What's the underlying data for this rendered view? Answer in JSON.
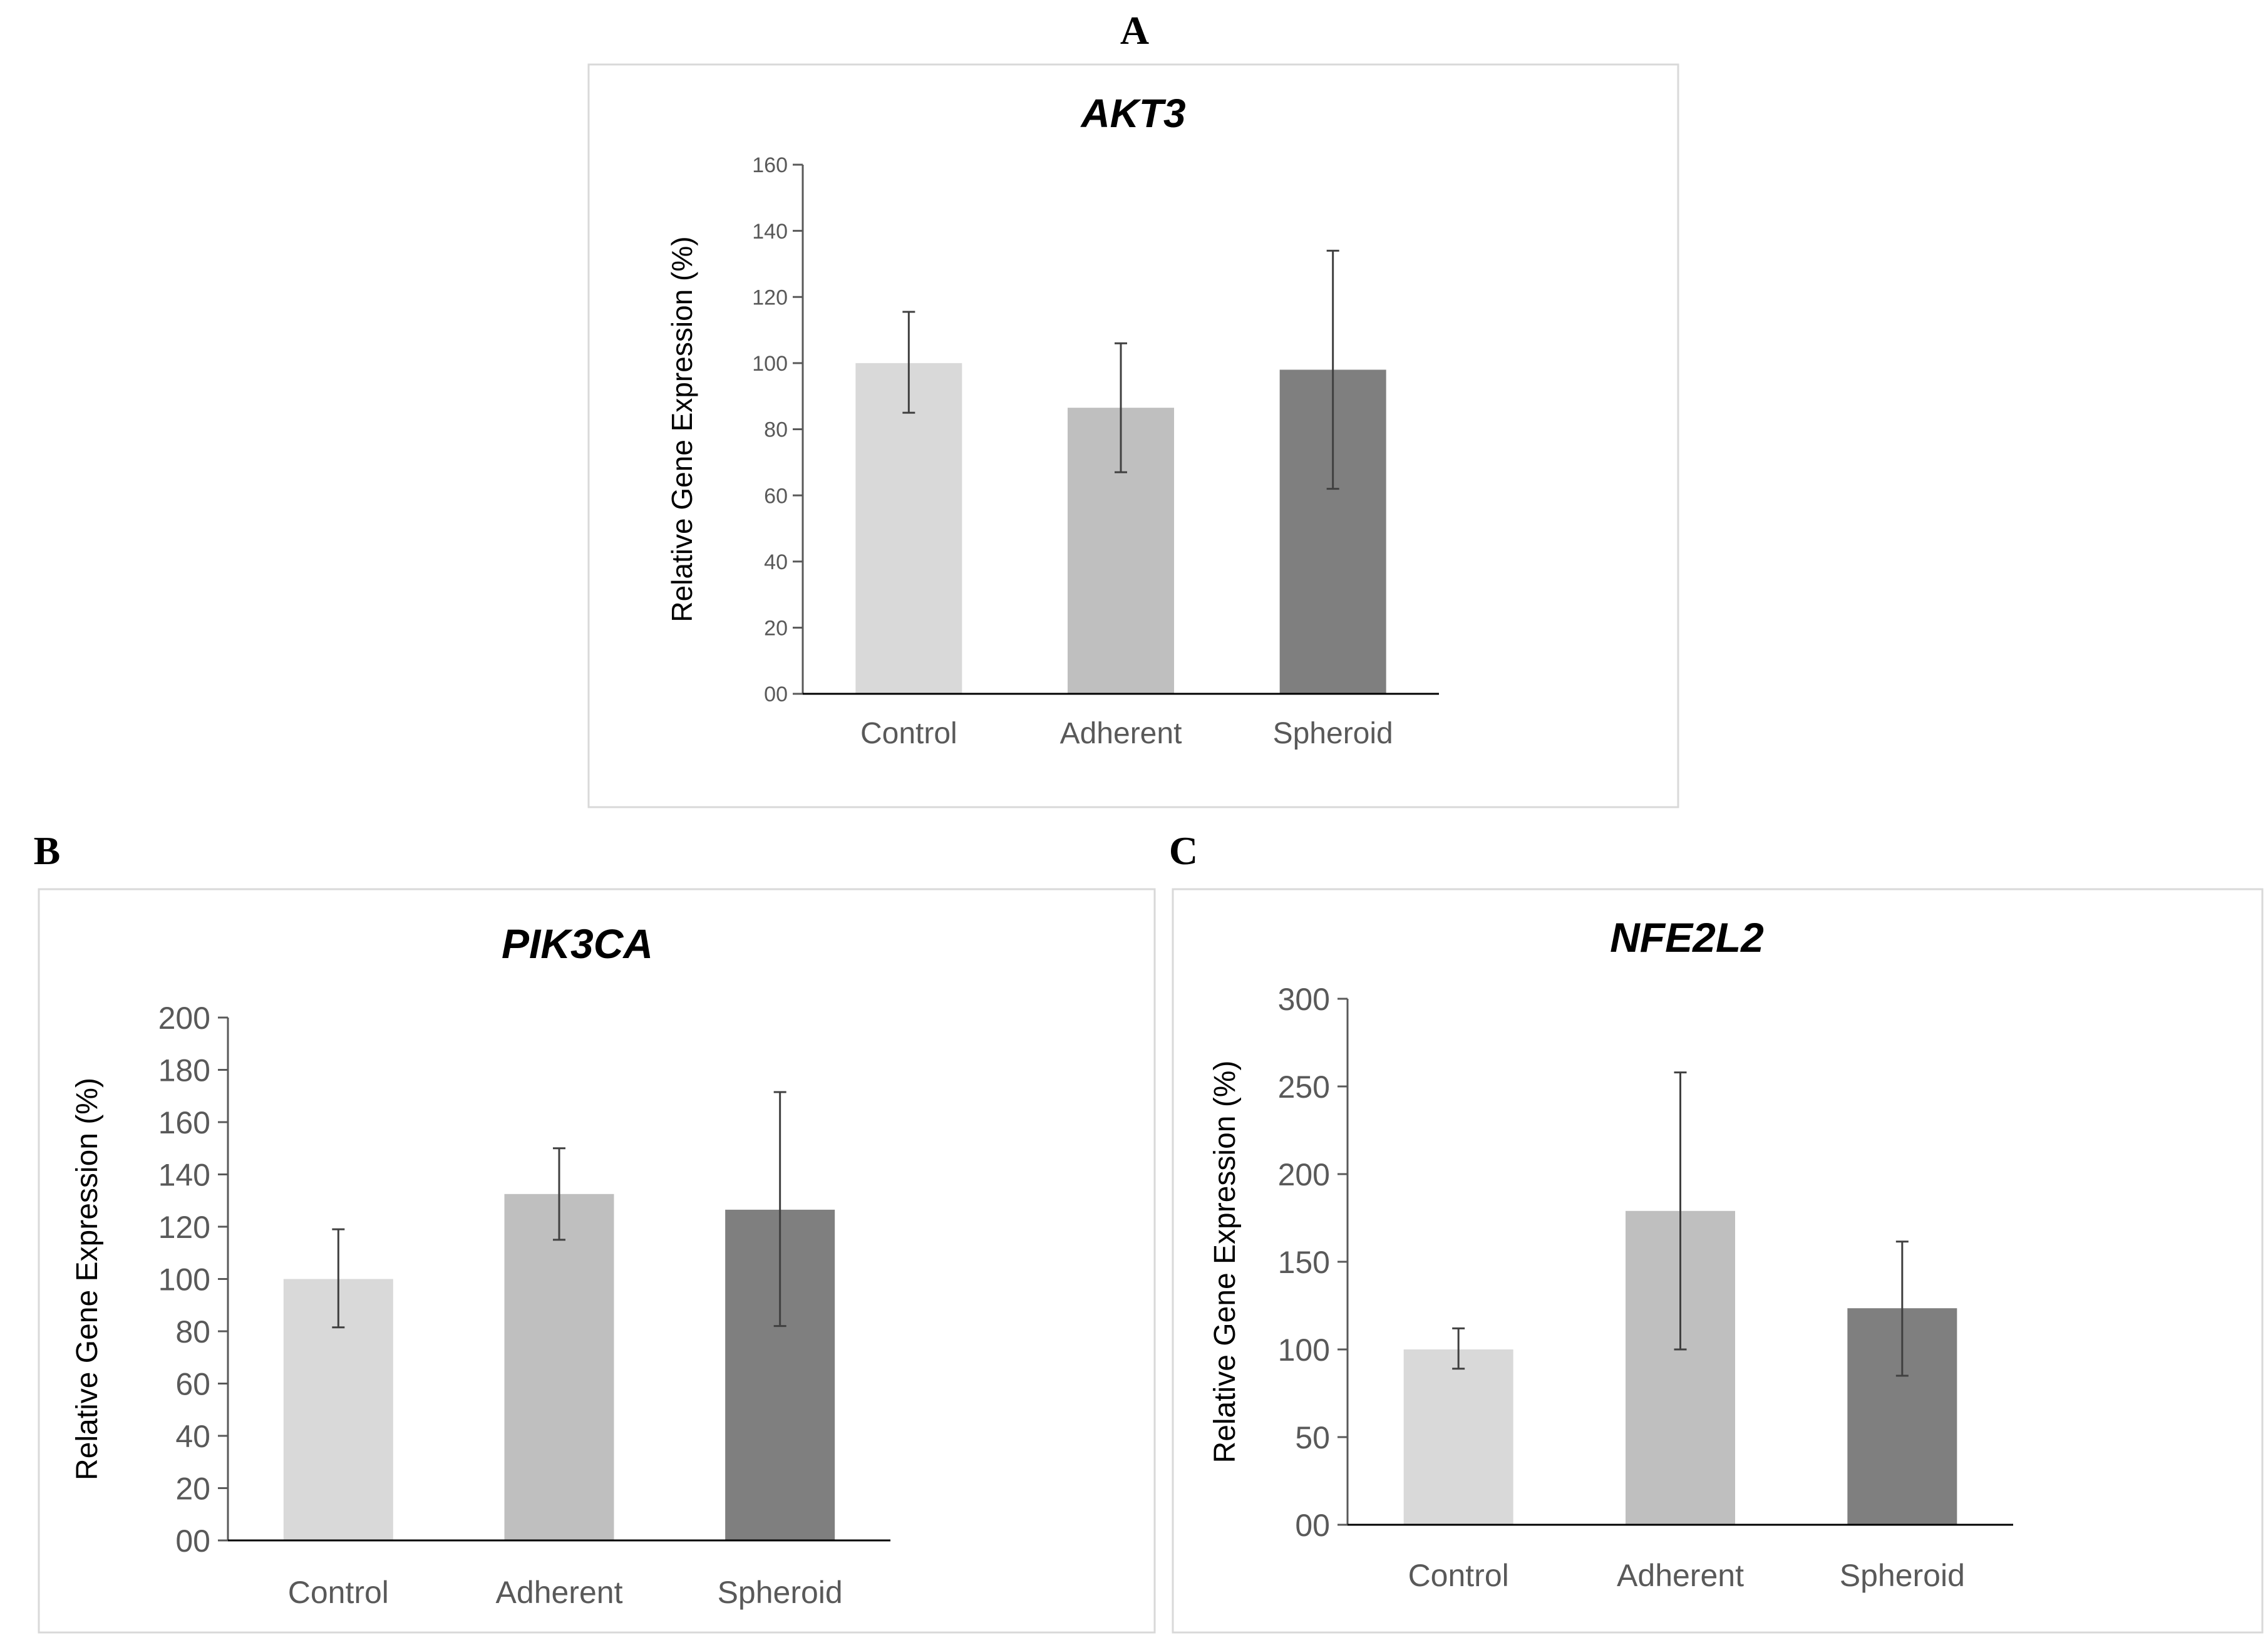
{
  "chart_data": [
    {
      "panel": "A",
      "type": "bar",
      "title": "AKT3",
      "ylabel": "Relative Gene Expression (%)",
      "xlabel": "",
      "categories": [
        "Control",
        "Adherent",
        "Spheroid"
      ],
      "values": [
        100,
        86.5,
        98
      ],
      "error_high": [
        115.5,
        106,
        134
      ],
      "error_low": [
        85,
        67,
        62
      ],
      "ylim": [
        0,
        160
      ],
      "yticks": [
        "00",
        "20",
        "40",
        "60",
        "80",
        "100",
        "120",
        "140",
        "160"
      ],
      "bar_colors": [
        "#d9d9d9",
        "#bfbfbf",
        "#7f7f7f"
      ],
      "grid": false,
      "legend": "none"
    },
    {
      "panel": "B",
      "type": "bar",
      "title": "PIK3CA",
      "ylabel": "Relative Gene Expression (%)",
      "xlabel": "",
      "categories": [
        "Control",
        "Adherent",
        "Spheroid"
      ],
      "values": [
        100,
        132.5,
        126.5
      ],
      "error_high": [
        119,
        150,
        171.5
      ],
      "error_low": [
        81.5,
        115,
        82
      ],
      "ylim": [
        0,
        200
      ],
      "yticks": [
        "00",
        "20",
        "40",
        "60",
        "80",
        "100",
        "120",
        "140",
        "160",
        "180",
        "200"
      ],
      "bar_colors": [
        "#d9d9d9",
        "#bfbfbf",
        "#7f7f7f"
      ],
      "grid": false,
      "legend": "none"
    },
    {
      "panel": "C",
      "type": "bar",
      "title": "NFE2L2",
      "ylabel": "Relative Gene Expression (%)",
      "xlabel": "",
      "categories": [
        "Control",
        "Adherent",
        "Spheroid"
      ],
      "values": [
        100,
        179,
        123.5
      ],
      "error_high": [
        112,
        258,
        161.5
      ],
      "error_low": [
        89,
        100,
        85
      ],
      "ylim": [
        0,
        300
      ],
      "yticks": [
        "00",
        "50",
        "100",
        "150",
        "200",
        "250",
        "300"
      ],
      "bar_colors": [
        "#d9d9d9",
        "#bfbfbf",
        "#7f7f7f"
      ],
      "grid": false,
      "legend": "none"
    }
  ]
}
